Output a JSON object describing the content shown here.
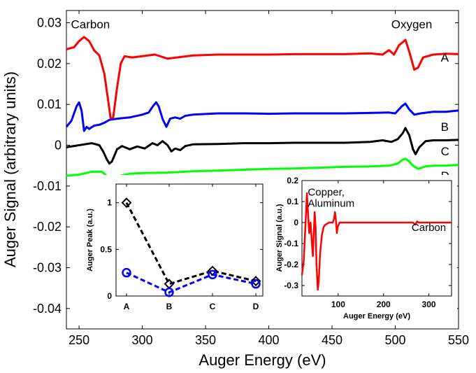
{
  "chart_data": [
    {
      "type": "line",
      "name": "main",
      "xlabel": "Auger Energy (eV)",
      "ylabel": "Auger Signal (arbitrary units)",
      "xlim": [
        240,
        550
      ],
      "ylim": [
        -0.045,
        0.033
      ],
      "xticks": [
        250,
        300,
        350,
        400,
        450,
        500,
        550
      ],
      "xtick_labels": [
        "250",
        "300",
        "350",
        "400",
        "450",
        "500",
        "550"
      ],
      "yticks": [
        0.03,
        0.02,
        0.01,
        0,
        -0.01,
        -0.02,
        -0.03,
        -0.04
      ],
      "ytick_labels": [
        "0.03",
        "0.02",
        "0.01",
        "0",
        "-0.01",
        "-0.02",
        "-0.03",
        "-0.04"
      ],
      "annotations": [
        {
          "text": "Carbon",
          "x": 259,
          "y": 0.0286
        },
        {
          "text": "Oxygen",
          "x": 513,
          "y": 0.0286
        }
      ],
      "series": [
        {
          "name": "A",
          "label_x": 536,
          "label_y": 0.0205,
          "color": "#ff0000",
          "points": [
            [
              240,
              0.0235
            ],
            [
              246,
              0.024
            ],
            [
              250,
              0.0255
            ],
            [
              254,
              0.0265
            ],
            [
              258,
              0.0255
            ],
            [
              262,
              0.0232
            ],
            [
              266,
              0.022
            ],
            [
              270,
              0.0175
            ],
            [
              273,
              0.011
            ],
            [
              275,
              0.0065
            ],
            [
              277,
              0.0068
            ],
            [
              280,
              0.014
            ],
            [
              283,
              0.02
            ],
            [
              286,
              0.0218
            ],
            [
              292,
              0.0215
            ],
            [
              300,
              0.0218
            ],
            [
              310,
              0.0222
            ],
            [
              320,
              0.0212
            ],
            [
              330,
              0.0216
            ],
            [
              340,
              0.022
            ],
            [
              360,
              0.0222
            ],
            [
              380,
              0.0222
            ],
            [
              400,
              0.0222
            ],
            [
              420,
              0.0223
            ],
            [
              440,
              0.0223
            ],
            [
              460,
              0.0223
            ],
            [
              480,
              0.0225
            ],
            [
              490,
              0.0222
            ],
            [
              495,
              0.0233
            ],
            [
              499,
              0.0222
            ],
            [
              503,
              0.0245
            ],
            [
              508,
              0.0258
            ],
            [
              511,
              0.023
            ],
            [
              515,
              0.0185
            ],
            [
              518,
              0.019
            ],
            [
              522,
              0.0215
            ],
            [
              530,
              0.0222
            ],
            [
              540,
              0.0224
            ],
            [
              550,
              0.0223
            ]
          ]
        },
        {
          "name": "B",
          "label_x": 536,
          "label_y": 0.0035,
          "color": "#0000ff",
          "points": [
            [
              240,
              0.0045
            ],
            [
              244,
              0.006
            ],
            [
              248,
              0.0095
            ],
            [
              250,
              0.0105
            ],
            [
              252,
              0.0085
            ],
            [
              254,
              0.0035
            ],
            [
              256,
              0.0045
            ],
            [
              258,
              0.004
            ],
            [
              262,
              0.0048
            ],
            [
              266,
              0.005
            ],
            [
              270,
              0.0055
            ],
            [
              274,
              0.0062
            ],
            [
              280,
              0.0065
            ],
            [
              290,
              0.0068
            ],
            [
              300,
              0.0075
            ],
            [
              305,
              0.008
            ],
            [
              309,
              0.0098
            ],
            [
              311,
              0.0105
            ],
            [
              313,
              0.0095
            ],
            [
              316,
              0.0065
            ],
            [
              319,
              0.0045
            ],
            [
              322,
              0.0065
            ],
            [
              326,
              0.0068
            ],
            [
              330,
              0.0065
            ],
            [
              334,
              0.0072
            ],
            [
              340,
              0.0075
            ],
            [
              360,
              0.0078
            ],
            [
              380,
              0.0078
            ],
            [
              400,
              0.0077
            ],
            [
              420,
              0.0078
            ],
            [
              440,
              0.0078
            ],
            [
              460,
              0.0078
            ],
            [
              480,
              0.0079
            ],
            [
              495,
              0.008
            ],
            [
              500,
              0.0078
            ],
            [
              505,
              0.0095
            ],
            [
              508,
              0.0102
            ],
            [
              511,
              0.0088
            ],
            [
              515,
              0.0075
            ],
            [
              520,
              0.0078
            ],
            [
              530,
              0.0082
            ],
            [
              540,
              0.0082
            ],
            [
              550,
              0.0085
            ]
          ]
        },
        {
          "name": "C",
          "label_x": 536,
          "label_y": -0.0025,
          "color": "#000000",
          "points": [
            [
              240,
              -0.0005
            ],
            [
              250,
              0
            ],
            [
              260,
              0.0005
            ],
            [
              266,
              0
            ],
            [
              269,
              -0.0015
            ],
            [
              272,
              -0.0035
            ],
            [
              274,
              -0.0045
            ],
            [
              276,
              -0.004
            ],
            [
              280,
              -0.001
            ],
            [
              284,
              -0.0002
            ],
            [
              290,
              -0.001
            ],
            [
              296,
              -0.0003
            ],
            [
              302,
              -0.0008
            ],
            [
              308,
              0.0005
            ],
            [
              312,
              0
            ],
            [
              316,
              0.001
            ],
            [
              320,
              0
            ],
            [
              323,
              -0.0015
            ],
            [
              326,
              -0.0008
            ],
            [
              330,
              -0.0012
            ],
            [
              334,
              -0.0002
            ],
            [
              340,
              0.0002
            ],
            [
              360,
              0.0003
            ],
            [
              380,
              0.0005
            ],
            [
              400,
              0.0005
            ],
            [
              420,
              0.0006
            ],
            [
              440,
              0.0006
            ],
            [
              460,
              0.0006
            ],
            [
              480,
              0.0008
            ],
            [
              490,
              0.0012
            ],
            [
              497,
              0.0008
            ],
            [
              502,
              0.0015
            ],
            [
              506,
              0.003
            ],
            [
              508,
              0.0042
            ],
            [
              511,
              0.0025
            ],
            [
              514,
              -0.001
            ],
            [
              516,
              -0.0022
            ],
            [
              519,
              -0.0005
            ],
            [
              524,
              0.001
            ],
            [
              530,
              0.0012
            ],
            [
              540,
              0.0012
            ],
            [
              550,
              0.0013
            ]
          ]
        },
        {
          "name": "D",
          "label_x": 536,
          "label_y": -0.0085,
          "color": "#00ff00",
          "points": [
            [
              240,
              -0.0075
            ],
            [
              250,
              -0.0072
            ],
            [
              260,
              -0.0065
            ],
            [
              268,
              -0.0065
            ],
            [
              272,
              -0.0075
            ],
            [
              275,
              -0.0085
            ],
            [
              278,
              -0.0085
            ],
            [
              282,
              -0.0075
            ],
            [
              290,
              -0.007
            ],
            [
              300,
              -0.0068
            ],
            [
              320,
              -0.0067
            ],
            [
              340,
              -0.0064
            ],
            [
              360,
              -0.0062
            ],
            [
              380,
              -0.006
            ],
            [
              400,
              -0.0058
            ],
            [
              420,
              -0.0057
            ],
            [
              440,
              -0.0055
            ],
            [
              460,
              -0.0053
            ],
            [
              480,
              -0.0052
            ],
            [
              495,
              -0.005
            ],
            [
              502,
              -0.0045
            ],
            [
              506,
              -0.0035
            ],
            [
              508,
              -0.0033
            ],
            [
              511,
              -0.004
            ],
            [
              514,
              -0.005
            ],
            [
              518,
              -0.0058
            ],
            [
              524,
              -0.0052
            ],
            [
              530,
              -0.005
            ],
            [
              540,
              -0.005
            ],
            [
              550,
              -0.0048
            ]
          ]
        }
      ]
    },
    {
      "type": "line",
      "name": "inset-peak",
      "xlabel": "",
      "ylabel": "Auger Peak (a.u.)",
      "categories": [
        "A",
        "B",
        "C",
        "D"
      ],
      "ylim": [
        0,
        1.2
      ],
      "yticks": [
        0,
        0.5,
        1
      ],
      "ytick_labels": [
        "0",
        "0.5",
        "1"
      ],
      "series": [
        {
          "name": "black-diamond",
          "color": "#000000",
          "marker": "diamond",
          "values": [
            1.0,
            0.13,
            0.27,
            0.16
          ]
        },
        {
          "name": "blue-circle",
          "color": "#0000ff",
          "marker": "circle",
          "values": [
            0.25,
            0.04,
            0.23,
            0.13
          ]
        }
      ]
    },
    {
      "type": "line",
      "name": "inset-wide",
      "xlabel": "Auger Energy (eV)",
      "ylabel": "Auger Signal (a.u.)",
      "xlim": [
        20,
        350
      ],
      "ylim": [
        -0.35,
        0.2
      ],
      "xticks": [
        100,
        200,
        300
      ],
      "xtick_labels": [
        "100",
        "200",
        "300"
      ],
      "yticks": [
        0.2,
        0.1,
        0,
        -0.1,
        -0.2,
        -0.3
      ],
      "ytick_labels": [
        "0.2",
        "0.1",
        "0",
        "-0.1",
        "-0.2",
        "-0.3"
      ],
      "annotations": [
        {
          "text": "Copper,",
          "x": 33,
          "y": 0.128
        },
        {
          "text": "Aluminum",
          "x": 33,
          "y": 0.075
        },
        {
          "text": "Carbon",
          "x": 262,
          "y": -0.04
        }
      ],
      "series": [
        {
          "name": "spectrum",
          "color": "#ff0000",
          "points": [
            [
              20,
              -0.25
            ],
            [
              24,
              -0.18
            ],
            [
              28,
              0.0
            ],
            [
              31,
              0.14
            ],
            [
              33,
              0.06
            ],
            [
              36,
              -0.05
            ],
            [
              39,
              0.0
            ],
            [
              42,
              -0.1
            ],
            [
              44,
              -0.16
            ],
            [
              46,
              -0.05
            ],
            [
              48,
              0.05
            ],
            [
              50,
              -0.02
            ],
            [
              52,
              -0.2
            ],
            [
              55,
              -0.32
            ],
            [
              57,
              -0.28
            ],
            [
              60,
              -0.15
            ],
            [
              64,
              -0.06
            ],
            [
              68,
              -0.02
            ],
            [
              72,
              -0.01
            ],
            [
              80,
              0.0
            ],
            [
              88,
              0.0
            ],
            [
              91,
              0.02
            ],
            [
              93,
              0.05
            ],
            [
              95,
              0.01
            ],
            [
              97,
              -0.05
            ],
            [
              99,
              -0.02
            ],
            [
              103,
              0.0
            ],
            [
              130,
              0.0
            ],
            [
              180,
              0.0
            ],
            [
              230,
              0.0
            ],
            [
              265,
              0.0
            ],
            [
              270,
              -0.01
            ],
            [
              274,
              0.005
            ],
            [
              278,
              0.0
            ],
            [
              300,
              0.0
            ],
            [
              350,
              0.0
            ]
          ]
        }
      ]
    }
  ]
}
